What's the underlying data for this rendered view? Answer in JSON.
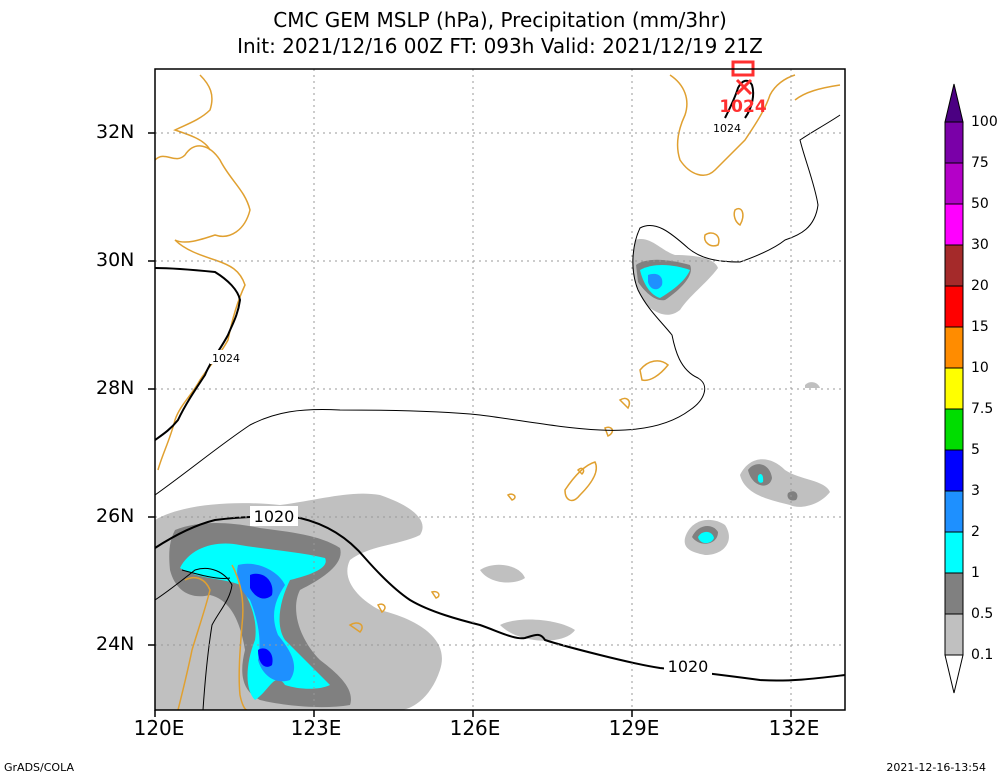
{
  "title": {
    "line1": "CMC GEM MSLP (hPa), Precipitation (mm/3hr)",
    "line2": "Init: 2021/12/16 00Z  FT: 093h  Valid: 2021/12/19 21Z"
  },
  "axes": {
    "lat_labels": [
      "32N",
      "30N",
      "28N",
      "26N",
      "24N"
    ],
    "lon_labels": [
      "120E",
      "123E",
      "126E",
      "129E",
      "132E"
    ]
  },
  "contours": {
    "labels": [
      "1024",
      "1024",
      "1020",
      "1020"
    ],
    "high_marker": "1024"
  },
  "colorbar": {
    "labels": [
      "100",
      "75",
      "50",
      "30",
      "20",
      "15",
      "10",
      "7.5",
      "5",
      "3",
      "2",
      "1",
      "0.5",
      "0.1"
    ],
    "colors": [
      "#7a00a8",
      "#b400c8",
      "#ff00ff",
      "#a52a2a",
      "#ff0000",
      "#ff8c00",
      "#ffff00",
      "#00dd00",
      "#0000ff",
      "#1e90ff",
      "#00ffff",
      "#808080",
      "#c0c0c0",
      "#ffffff"
    ]
  },
  "footer": {
    "left": "GrADS/COLA",
    "right": "2021-12-16-13:54"
  },
  "colors": {
    "coastline": "#e0a030",
    "isobar": "#000000",
    "high": "#ff3030"
  }
}
